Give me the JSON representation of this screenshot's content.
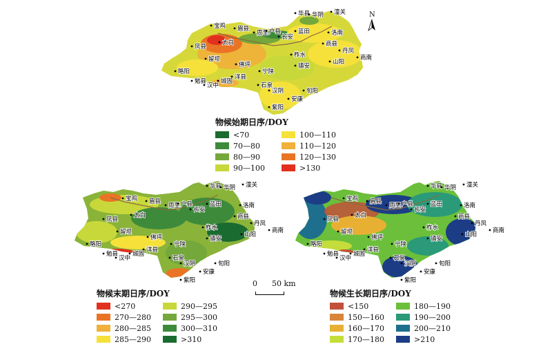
{
  "north_label": "N",
  "scale": {
    "zero": "0",
    "distance": "50 km"
  },
  "places": [
    "宝鸡",
    "眉县",
    "周至",
    "户县",
    "长安",
    "蓝田",
    "华县",
    "华阴",
    "潼关",
    "洛南",
    "商县",
    "丹凤",
    "商南",
    "凤县",
    "太白",
    "留坝",
    "佛坪",
    "柞水",
    "山阳",
    "镇安",
    "宁陕",
    "略阳",
    "勉县",
    "汉中",
    "城固",
    "洋县",
    "石泉",
    "汉阴",
    "旬阳",
    "安康",
    "紫阳"
  ],
  "maps": [
    {
      "legend_title": "物候始期日序/DOY",
      "classes": [
        {
          "label": "<70",
          "color": "#1a6b30"
        },
        {
          "label": "100—110",
          "color": "#f5e13a"
        },
        {
          "label": "70—80",
          "color": "#3d8b3a"
        },
        {
          "label": "110—120",
          "color": "#f0b03a"
        },
        {
          "label": "80—90",
          "color": "#74a83a"
        },
        {
          "label": "120—130",
          "color": "#ea7425"
        },
        {
          "label": "90—100",
          "color": "#c8d83a"
        },
        {
          "label": ">130",
          "color": "#e2301f"
        }
      ]
    },
    {
      "legend_title": "物候末期日序/DOY",
      "classes": [
        {
          "label": "<270",
          "color": "#e2301f"
        },
        {
          "label": "290—295",
          "color": "#c8d83a"
        },
        {
          "label": "270—280",
          "color": "#ea7425"
        },
        {
          "label": "295—300",
          "color": "#74a83a"
        },
        {
          "label": "280—285",
          "color": "#f0b03a"
        },
        {
          "label": "300—310",
          "color": "#3d8b3a"
        },
        {
          "label": "285—290",
          "color": "#f5e13a"
        },
        {
          "label": ">310",
          "color": "#1a6b30"
        }
      ]
    },
    {
      "legend_title": "物候生长期日序/DOY",
      "classes": [
        {
          "label": "<150",
          "color": "#c2503a"
        },
        {
          "label": "180—190",
          "color": "#6bbf3a"
        },
        {
          "label": "150—160",
          "color": "#d8853a"
        },
        {
          "label": "190—200",
          "color": "#2a9a78"
        },
        {
          "label": "160—170",
          "color": "#e8b033"
        },
        {
          "label": "200—210",
          "color": "#1e6e8e"
        },
        {
          "label": "170—180",
          "color": "#c5dd3a"
        },
        {
          "label": ">210",
          "color": "#1c3d86"
        }
      ]
    }
  ]
}
